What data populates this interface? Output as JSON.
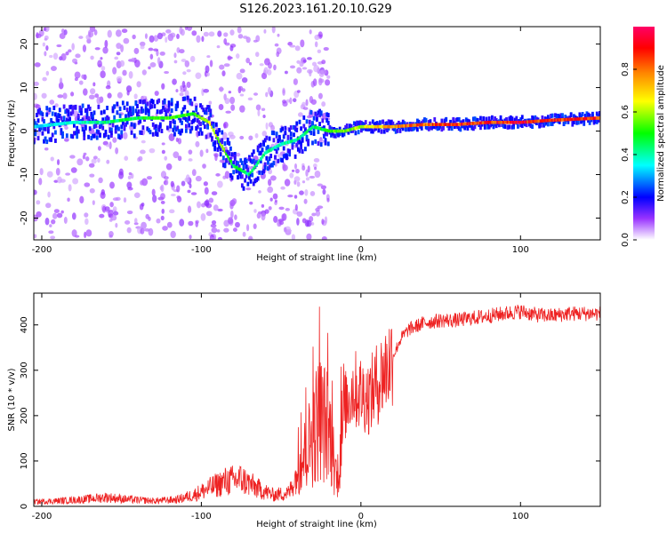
{
  "figure_title": "S126.2023.161.20.10.G29",
  "colors": {
    "snr_line": "#ee2222",
    "axis": "#000000",
    "background": "#ffffff"
  },
  "chart_data": [
    {
      "type": "heatmap",
      "name": "spectrogram",
      "xlabel": "Height of straight line (km)",
      "ylabel": "Frequency (Hz)",
      "xlim": [
        -205,
        150
      ],
      "ylim": [
        -25,
        24
      ],
      "xticks": [
        -200,
        -100,
        0,
        100
      ],
      "yticks": [
        -20,
        -10,
        0,
        10,
        20
      ],
      "colorbar": {
        "label": "Normalized spectral amplitude",
        "range": [
          0,
          1
        ],
        "ticks": [
          "0.0",
          "0.2",
          "0.4",
          "0.6",
          "0.8"
        ],
        "tick_values": [
          0.0,
          0.2,
          0.4,
          0.6,
          0.8
        ],
        "colormap": "white-purple-blue-cyan-green-yellow-orange-red-magenta"
      },
      "ridge": {
        "description": "dominant frequency track",
        "x": [
          -205,
          -180,
          -160,
          -140,
          -120,
          -105,
          -95,
          -88,
          -80,
          -70,
          -60,
          -50,
          -40,
          -30,
          -20,
          -10,
          0,
          20,
          40,
          60,
          80,
          100,
          120,
          150
        ],
        "freq": [
          1,
          2,
          2,
          3,
          3,
          4,
          2,
          -3,
          -8,
          -10,
          -5,
          -3,
          -2,
          1,
          0,
          0,
          1,
          1,
          1.5,
          1.5,
          2,
          2,
          2.5,
          3
        ],
        "amplitude": [
          0.35,
          0.4,
          0.45,
          0.5,
          0.55,
          0.55,
          0.65,
          0.6,
          0.5,
          0.45,
          0.45,
          0.4,
          0.45,
          0.45,
          0.55,
          0.6,
          0.65,
          0.8,
          0.85,
          0.9,
          0.9,
          0.95,
          0.9,
          0.9
        ]
      }
    },
    {
      "type": "line",
      "name": "snr",
      "xlabel": "Height of straight line (km)",
      "ylabel": "SNR (10 * v/v)",
      "xlim": [
        -205,
        150
      ],
      "ylim": [
        0,
        470
      ],
      "xticks": [
        -200,
        -100,
        0,
        100
      ],
      "yticks": [
        0,
        100,
        200,
        300,
        400
      ],
      "series": [
        {
          "name": "SNR",
          "x": [
            -205,
            -190,
            -175,
            -160,
            -145,
            -130,
            -115,
            -105,
            -95,
            -85,
            -75,
            -65,
            -55,
            -45,
            -38,
            -32,
            -26,
            -20,
            -15,
            -10,
            -5,
            0,
            5,
            10,
            15,
            20,
            25,
            30,
            40,
            50,
            60,
            70,
            80,
            90,
            100,
            110,
            120,
            130,
            150
          ],
          "y": [
            10,
            12,
            15,
            20,
            15,
            12,
            15,
            25,
            40,
            55,
            60,
            40,
            25,
            30,
            90,
            140,
            200,
            170,
            60,
            220,
            260,
            250,
            240,
            270,
            300,
            330,
            370,
            390,
            405,
            410,
            410,
            415,
            420,
            425,
            430,
            422,
            420,
            425,
            425
          ]
        }
      ]
    }
  ]
}
